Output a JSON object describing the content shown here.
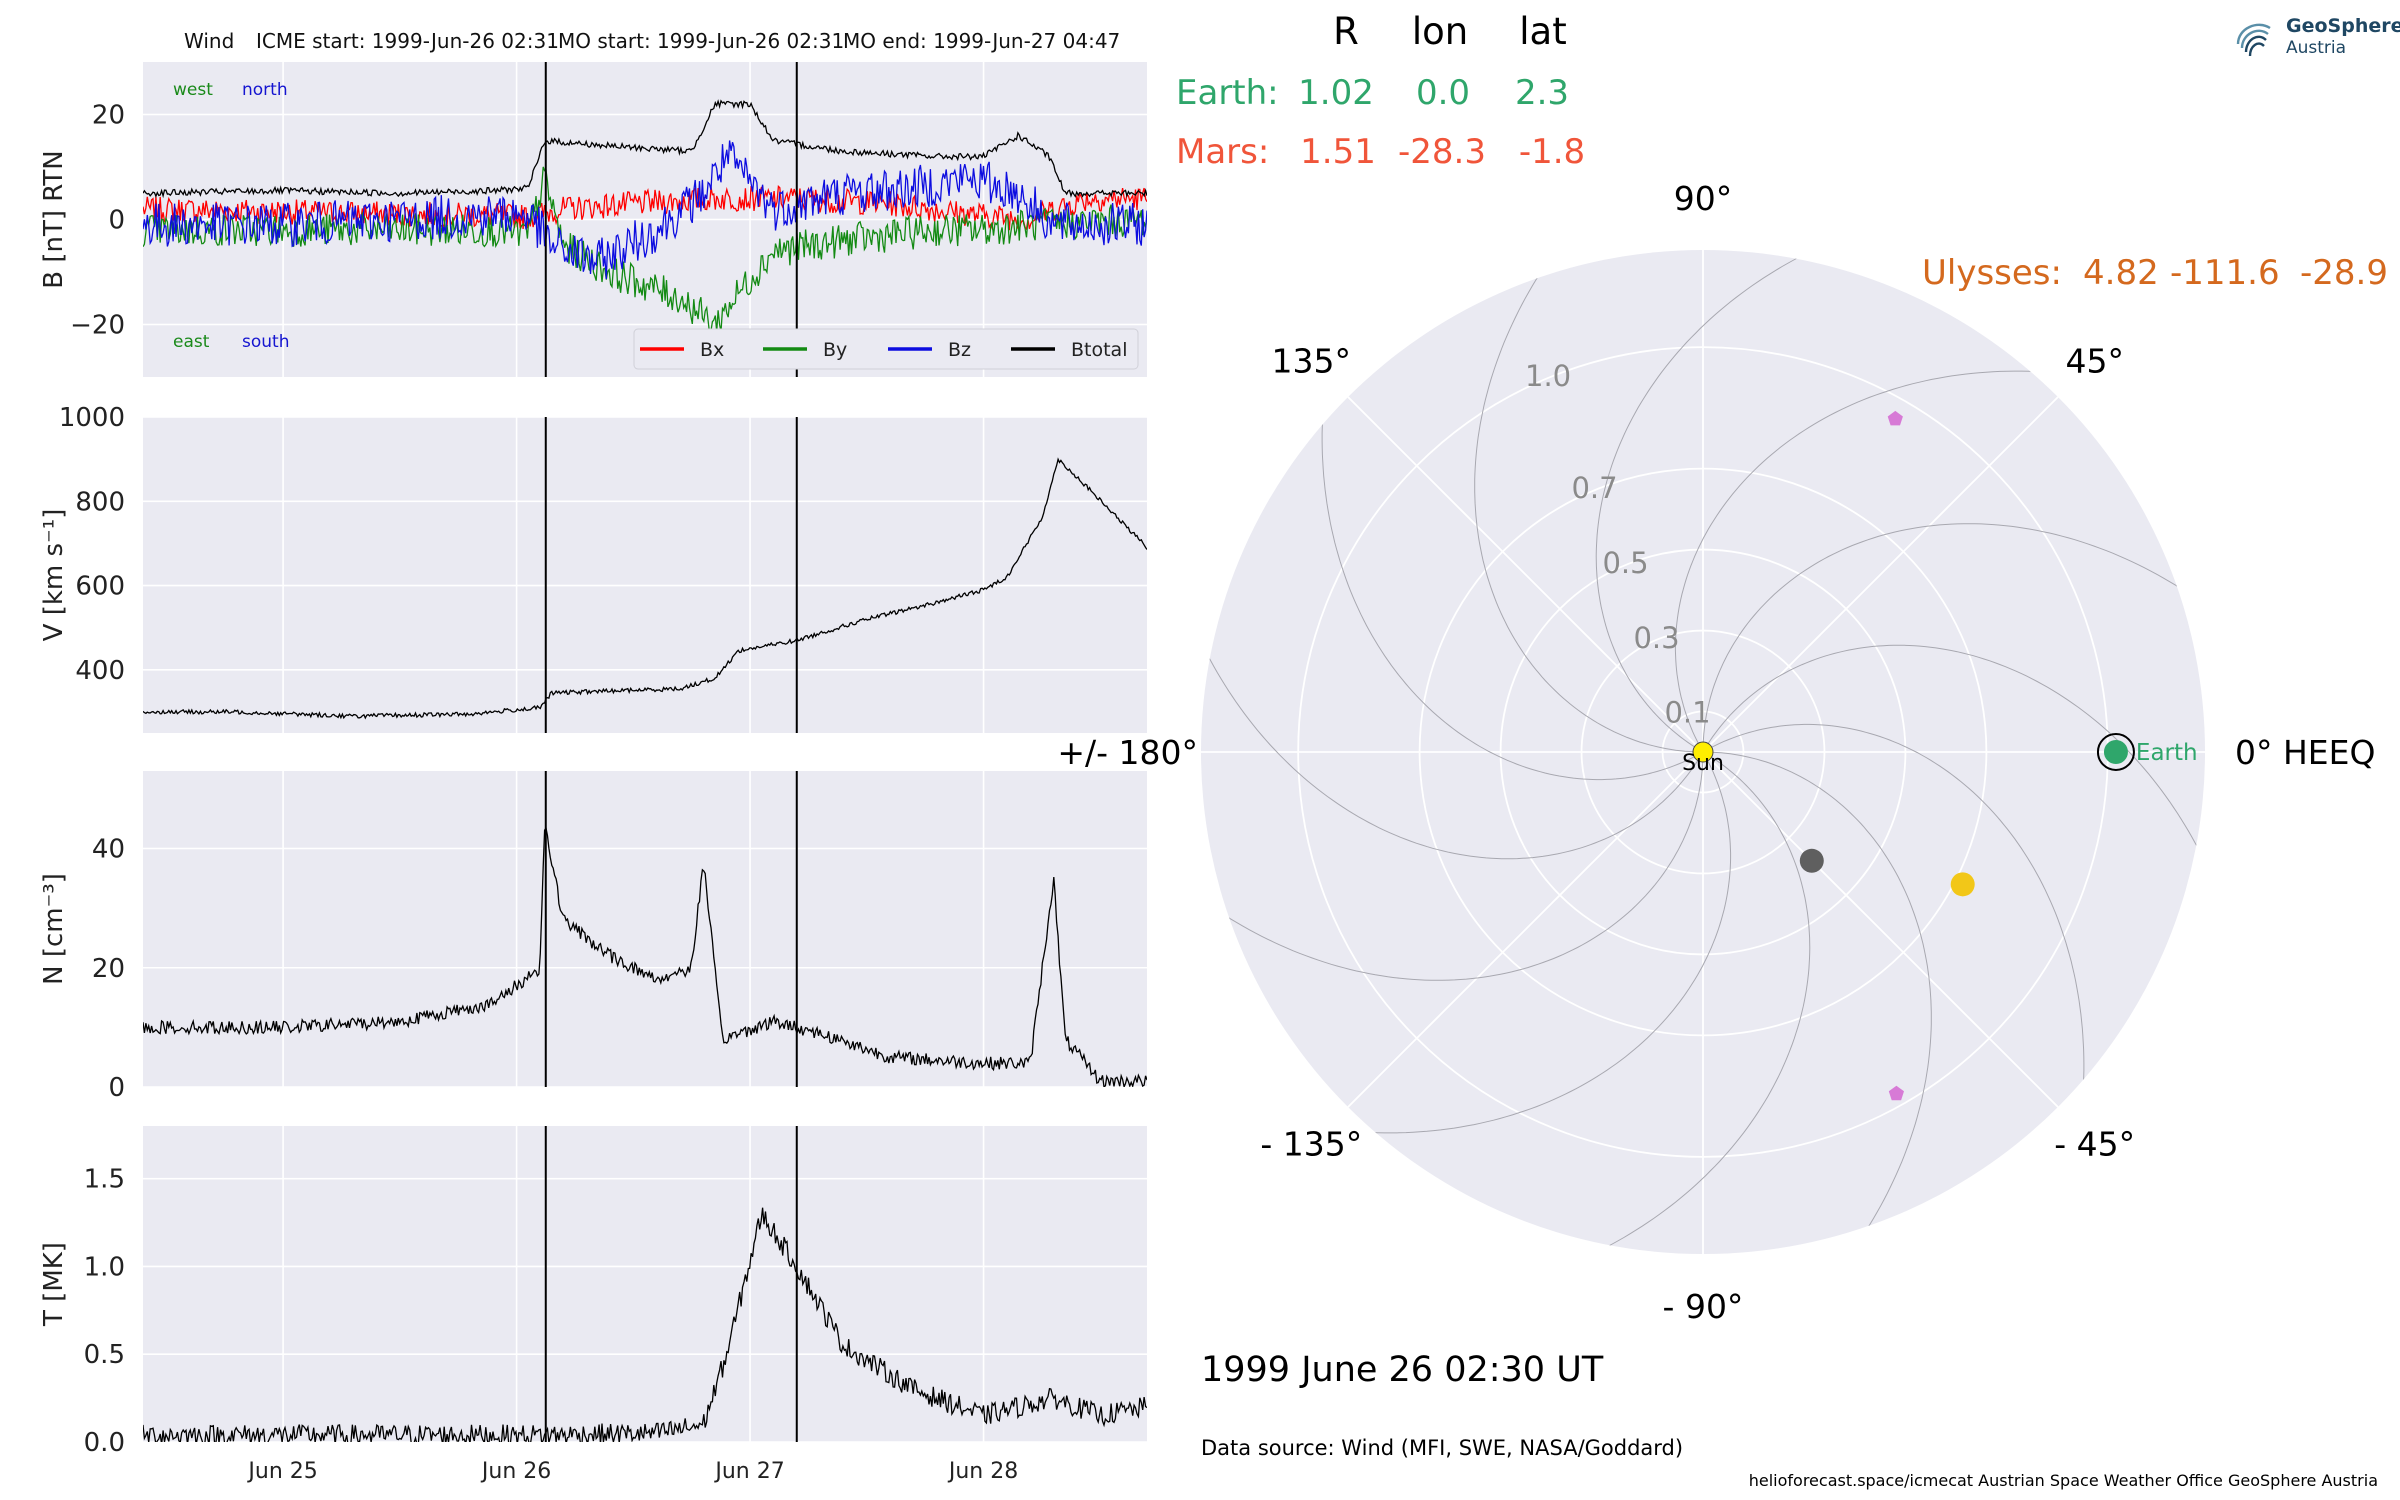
{
  "header": {
    "spacecraft": "Wind",
    "icme_start": "ICME start: 1999-Jun-26 02:31",
    "mo_start": "MO start: 1999-Jun-26 02:31",
    "mo_end": "MO end: 1999-Jun-27 04:47"
  },
  "logo": {
    "name": "GeoSphere",
    "sub": "Austria",
    "icon": "geosphere-logo-icon"
  },
  "positions_table": {
    "columns": [
      "R",
      "lon",
      "lat"
    ],
    "rows": [
      {
        "label": "Earth:",
        "r": "1.02",
        "lon": "0.0",
        "lat": "2.3",
        "color": "#2fa66b"
      },
      {
        "label": "Mars:",
        "r": "1.51",
        "lon": "-28.3",
        "lat": "-1.8",
        "color": "#f0553a"
      },
      {
        "label": "Ulysses:",
        "r": "4.82",
        "lon": "-111.6",
        "lat": "-28.9",
        "color": "#d4691e"
      }
    ]
  },
  "date_label": "1999 June 26  02:30 UT",
  "data_source": "Data source: Wind (MFI, SWE, NASA/Goddard)",
  "footer": "helioforecast.space/icmecat   Austrian Space Weather Office   GeoSphere Austria",
  "chart_data": [
    {
      "type": "line",
      "ylabel": "B [nT] RTN",
      "ylim": [
        -30,
        30
      ],
      "yticks": [
        -20,
        0,
        20
      ],
      "ytick_labels": [
        "−20",
        "0",
        "20"
      ],
      "xlim": [
        -0.6,
        3.7
      ],
      "xticks": [
        0,
        1,
        2,
        3
      ],
      "grid": true,
      "legend_position": "bottom-right",
      "corner_labels": [
        {
          "text": "west",
          "color": "#1a8a1a",
          "pos": "top-left"
        },
        {
          "text": "north",
          "color": "#1515d0",
          "pos": "top-left"
        },
        {
          "text": "east",
          "color": "#1a8a1a",
          "pos": "bottom-left"
        },
        {
          "text": "south",
          "color": "#1515d0",
          "pos": "bottom-left"
        }
      ],
      "series": [
        {
          "name": "Bx",
          "color": "#ff0000",
          "noise": 2.4,
          "points": [
            [
              -0.6,
              2
            ],
            [
              0.0,
              1.5
            ],
            [
              0.5,
              1
            ],
            [
              0.9,
              0.8
            ],
            [
              1.05,
              0.5
            ],
            [
              1.2,
              2
            ],
            [
              1.5,
              3
            ],
            [
              1.85,
              4
            ],
            [
              2.2,
              4
            ],
            [
              2.6,
              3
            ],
            [
              2.95,
              1
            ],
            [
              3.2,
              0
            ],
            [
              3.3,
              2
            ],
            [
              3.45,
              4
            ],
            [
              3.7,
              4
            ]
          ]
        },
        {
          "name": "By",
          "color": "#138a13",
          "noise": 3.2,
          "points": [
            [
              -0.6,
              -2
            ],
            [
              0.0,
              -2
            ],
            [
              0.5,
              -2
            ],
            [
              0.9,
              -2
            ],
            [
              1.05,
              -3
            ],
            [
              1.12,
              8
            ],
            [
              1.2,
              -5
            ],
            [
              1.4,
              -10
            ],
            [
              1.7,
              -15
            ],
            [
              1.85,
              -20
            ],
            [
              1.95,
              -14
            ],
            [
              2.1,
              -6
            ],
            [
              2.4,
              -4
            ],
            [
              2.8,
              -2
            ],
            [
              3.0,
              -2
            ],
            [
              3.2,
              -1
            ],
            [
              3.7,
              0
            ]
          ]
        },
        {
          "name": "Bz",
          "color": "#0d0de0",
          "noise": 4.2,
          "points": [
            [
              -0.6,
              -1
            ],
            [
              0.0,
              -1
            ],
            [
              0.5,
              0
            ],
            [
              0.9,
              1
            ],
            [
              1.05,
              1
            ],
            [
              1.15,
              -5
            ],
            [
              1.35,
              -8
            ],
            [
              1.6,
              -2
            ],
            [
              1.8,
              5
            ],
            [
              1.9,
              12
            ],
            [
              2.1,
              2
            ],
            [
              2.4,
              5
            ],
            [
              2.7,
              6
            ],
            [
              2.95,
              8
            ],
            [
              3.15,
              5
            ],
            [
              3.3,
              -1
            ],
            [
              3.7,
              -1
            ]
          ]
        },
        {
          "name": "Btotal",
          "color": "#000000",
          "noise": 0.6,
          "points": [
            [
              -0.6,
              5
            ],
            [
              0.0,
              5.5
            ],
            [
              0.5,
              5
            ],
            [
              0.9,
              5.5
            ],
            [
              1.05,
              6
            ],
            [
              1.12,
              15
            ],
            [
              1.4,
              14
            ],
            [
              1.75,
              13
            ],
            [
              1.85,
              22
            ],
            [
              2.0,
              22
            ],
            [
              2.1,
              15
            ],
            [
              2.4,
              13
            ],
            [
              2.8,
              12
            ],
            [
              3.0,
              12
            ],
            [
              3.15,
              16
            ],
            [
              3.28,
              12
            ],
            [
              3.35,
              5
            ],
            [
              3.7,
              5
            ]
          ]
        }
      ]
    },
    {
      "type": "line",
      "ylabel": "V [km s⁻¹]",
      "ylim": [
        250,
        1000
      ],
      "yticks": [
        400,
        600,
        800,
        1000
      ],
      "ytick_labels": [
        "400",
        "600",
        "800",
        "1000"
      ],
      "xlim": [
        -0.6,
        3.7
      ],
      "xticks": [
        0,
        1,
        2,
        3
      ],
      "grid": true,
      "series": [
        {
          "name": "",
          "color": "#000000",
          "noise": 5,
          "points": [
            [
              -0.6,
              300
            ],
            [
              -0.2,
              300
            ],
            [
              0.3,
              290
            ],
            [
              0.8,
              295
            ],
            [
              1.1,
              310
            ],
            [
              1.15,
              345
            ],
            [
              1.4,
              350
            ],
            [
              1.7,
              355
            ],
            [
              1.85,
              380
            ],
            [
              1.95,
              445
            ],
            [
              2.2,
              470
            ],
            [
              2.5,
              520
            ],
            [
              2.8,
              560
            ],
            [
              3.0,
              590
            ],
            [
              3.1,
              620
            ],
            [
              3.25,
              760
            ],
            [
              3.32,
              900
            ],
            [
              3.45,
              830
            ],
            [
              3.7,
              690
            ]
          ]
        }
      ]
    },
    {
      "type": "line",
      "ylabel": "N [cm⁻³]",
      "ylim": [
        0,
        53
      ],
      "yticks": [
        0,
        20,
        40
      ],
      "ytick_labels": [
        "0",
        "20",
        "40"
      ],
      "xlim": [
        -0.6,
        3.7
      ],
      "xticks": [
        0,
        1,
        2,
        3
      ],
      "grid": true,
      "series": [
        {
          "name": "",
          "color": "#000000",
          "noise": 1.1,
          "points": [
            [
              -0.6,
              10
            ],
            [
              0.0,
              10
            ],
            [
              0.5,
              11
            ],
            [
              0.9,
              14
            ],
            [
              1.1,
              20
            ],
            [
              1.12,
              44
            ],
            [
              1.2,
              28
            ],
            [
              1.4,
              22
            ],
            [
              1.6,
              18
            ],
            [
              1.75,
              20
            ],
            [
              1.8,
              38
            ],
            [
              1.88,
              8
            ],
            [
              2.1,
              11
            ],
            [
              2.3,
              9
            ],
            [
              2.6,
              5
            ],
            [
              3.0,
              4
            ],
            [
              3.2,
              4
            ],
            [
              3.3,
              35
            ],
            [
              3.35,
              8
            ],
            [
              3.5,
              1
            ],
            [
              3.7,
              1
            ]
          ]
        }
      ]
    },
    {
      "type": "line",
      "ylabel": "T [MK]",
      "ylim": [
        0,
        1.8
      ],
      "yticks": [
        0.0,
        0.5,
        1.0,
        1.5
      ],
      "ytick_labels": [
        "0.0",
        "0.5",
        "1.0",
        "1.5"
      ],
      "xlim": [
        -0.6,
        3.7
      ],
      "xticks": [
        0,
        1,
        2,
        3
      ],
      "xtick_labels": [
        "Jun 25",
        "Jun 26",
        "Jun 27",
        "Jun 28"
      ],
      "grid": true,
      "series": [
        {
          "name": "",
          "color": "#000000",
          "noise": 0.06,
          "points": [
            [
              -0.6,
              0.04
            ],
            [
              0.5,
              0.04
            ],
            [
              1.1,
              0.04
            ],
            [
              1.6,
              0.05
            ],
            [
              1.8,
              0.1
            ],
            [
              1.9,
              0.5
            ],
            [
              2.05,
              1.3
            ],
            [
              2.2,
              1.0
            ],
            [
              2.4,
              0.55
            ],
            [
              2.7,
              0.3
            ],
            [
              3.0,
              0.15
            ],
            [
              3.3,
              0.25
            ],
            [
              3.5,
              0.15
            ],
            [
              3.7,
              0.2
            ]
          ]
        }
      ]
    },
    {
      "type": "scatter",
      "projection": "polar",
      "r_ticks": [
        0.1,
        0.3,
        0.5,
        0.7,
        1.0
      ],
      "r_tick_labels": [
        "0.1",
        "0.3",
        "0.5",
        "0.7",
        "1.0"
      ],
      "angle_labels": [
        {
          "deg": 90,
          "text": "90°"
        },
        {
          "deg": 45,
          "text": "45°"
        },
        {
          "deg": 0,
          "text": "0° HEEQ"
        },
        {
          "deg": -45,
          "text": "- 45°"
        },
        {
          "deg": -90,
          "text": "- 90°"
        },
        {
          "deg": -135,
          "text": "- 135°"
        },
        {
          "deg": 180,
          "text": "+/- 180°"
        },
        {
          "deg": 135,
          "text": "135°"
        }
      ],
      "points": [
        {
          "name": "Sun",
          "r": 0.0,
          "lon": 0.0,
          "color": "#ffee00",
          "shape": "circle",
          "label": "Sun"
        },
        {
          "name": "Earth",
          "r": 1.02,
          "lon": 0.0,
          "color": "#2fa66b",
          "shape": "circle-ring",
          "label": "Earth"
        },
        {
          "name": "planet-gray",
          "r": 0.38,
          "lon": -45.0,
          "color": "#5f5f5f",
          "shape": "circle"
        },
        {
          "name": "planet-yellow",
          "r": 0.72,
          "lon": -27.0,
          "color": "#f2c718",
          "shape": "circle"
        },
        {
          "name": "probe-upper",
          "r": 0.95,
          "lon": 60.0,
          "color": "#d77ad6",
          "shape": "pentagon"
        },
        {
          "name": "probe-lower",
          "r": 0.97,
          "lon": -60.5,
          "color": "#d77ad6",
          "shape": "pentagon"
        }
      ]
    }
  ]
}
